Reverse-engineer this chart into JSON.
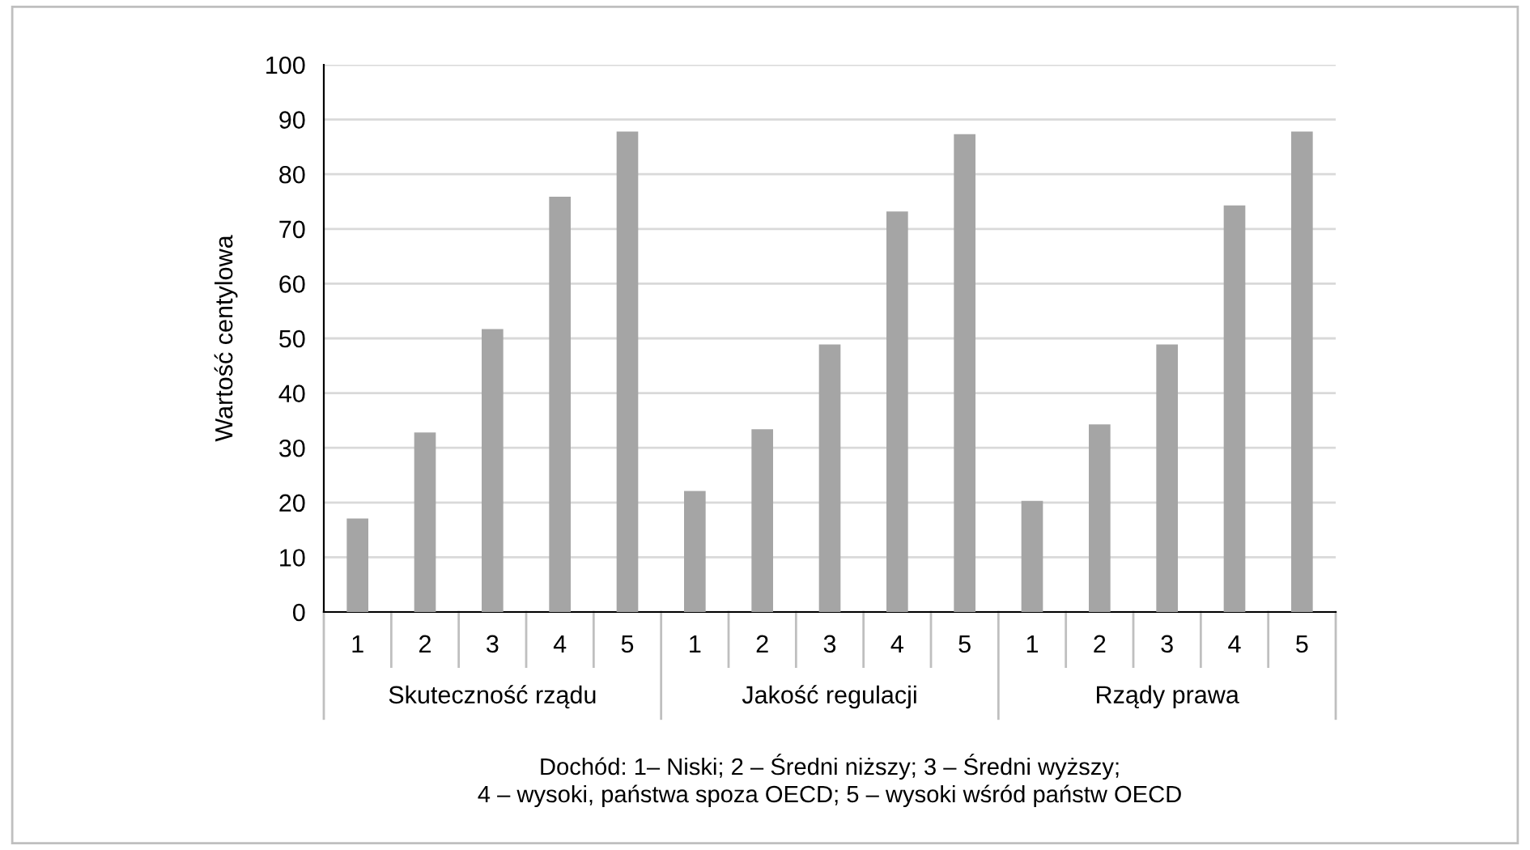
{
  "chart_data": {
    "type": "bar",
    "ylabel": "Wartość centylowa",
    "categories": [
      "1",
      "2",
      "3",
      "4",
      "5",
      "1",
      "2",
      "3",
      "4",
      "5",
      "1",
      "2",
      "3",
      "4",
      "5"
    ],
    "values": [
      17.1,
      32.8,
      51.7,
      75.9,
      87.8,
      22.1,
      33.4,
      48.9,
      73.2,
      87.3,
      20.3,
      34.3,
      48.9,
      74.3,
      87.8
    ],
    "color": "#a5a5a5",
    "ylim": [
      0,
      100
    ],
    "yticks": [
      0,
      10,
      20,
      30,
      40,
      50,
      60,
      70,
      80,
      90,
      100
    ],
    "grid": "y",
    "annotations": [
      "Skuteczność rządu",
      "Jakość regulacji",
      "Rządy prawa",
      "Dochód: 1– Niski; 2 – Średni niższy; 3 – Średni wyższy;\n4 – wysoki, państwa spoza OECD; 5 – wysoki wśród państw OECD"
    ]
  }
}
